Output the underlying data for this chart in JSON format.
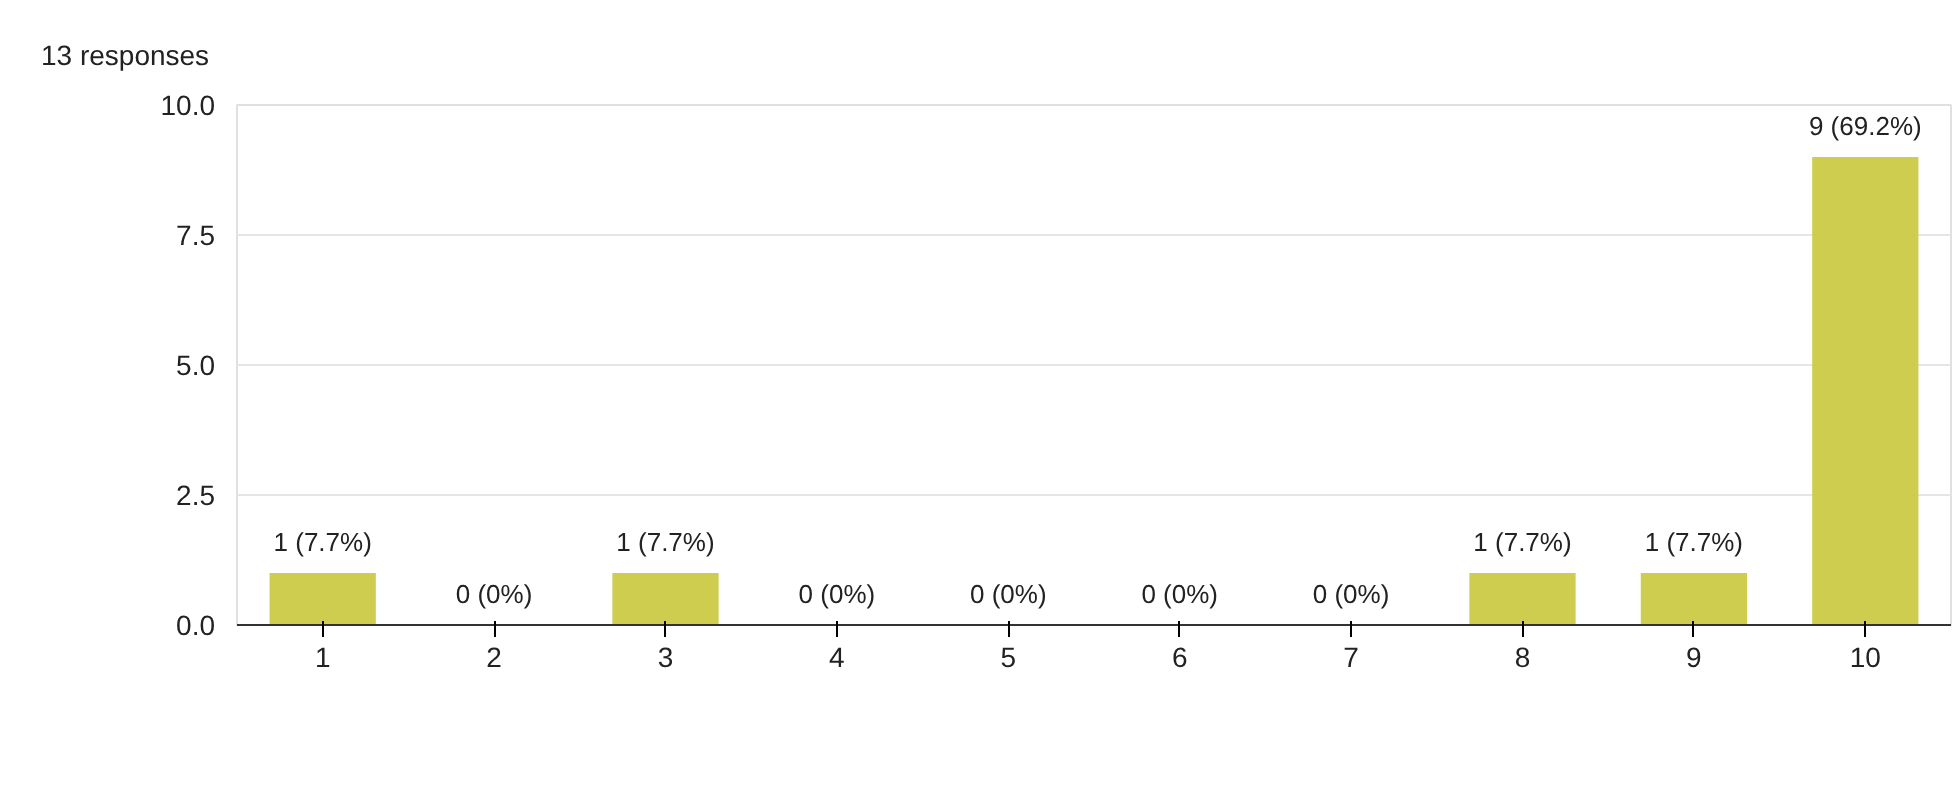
{
  "chart_data": {
    "type": "bar",
    "title": "13 responses",
    "categories": [
      "1",
      "2",
      "3",
      "4",
      "5",
      "6",
      "7",
      "8",
      "9",
      "10"
    ],
    "values": [
      1,
      0,
      1,
      0,
      0,
      0,
      0,
      1,
      1,
      9
    ],
    "value_labels": [
      "1 (7.7%)",
      "0 (0%)",
      "1 (7.7%)",
      "0 (0%)",
      "0 (0%)",
      "0 (0%)",
      "0 (0%)",
      "1 (7.7%)",
      "1 (7.7%)",
      "9 (69.2%)"
    ],
    "color": "#cfcd4f",
    "ylim": [
      0,
      10
    ],
    "yticks": [
      {
        "value": 0,
        "label": "0.0"
      },
      {
        "value": 2.5,
        "label": "2.5"
      },
      {
        "value": 5,
        "label": "5.0"
      },
      {
        "value": 7.5,
        "label": "7.5"
      },
      {
        "value": 10,
        "label": "10.0"
      }
    ],
    "grid": "y"
  }
}
